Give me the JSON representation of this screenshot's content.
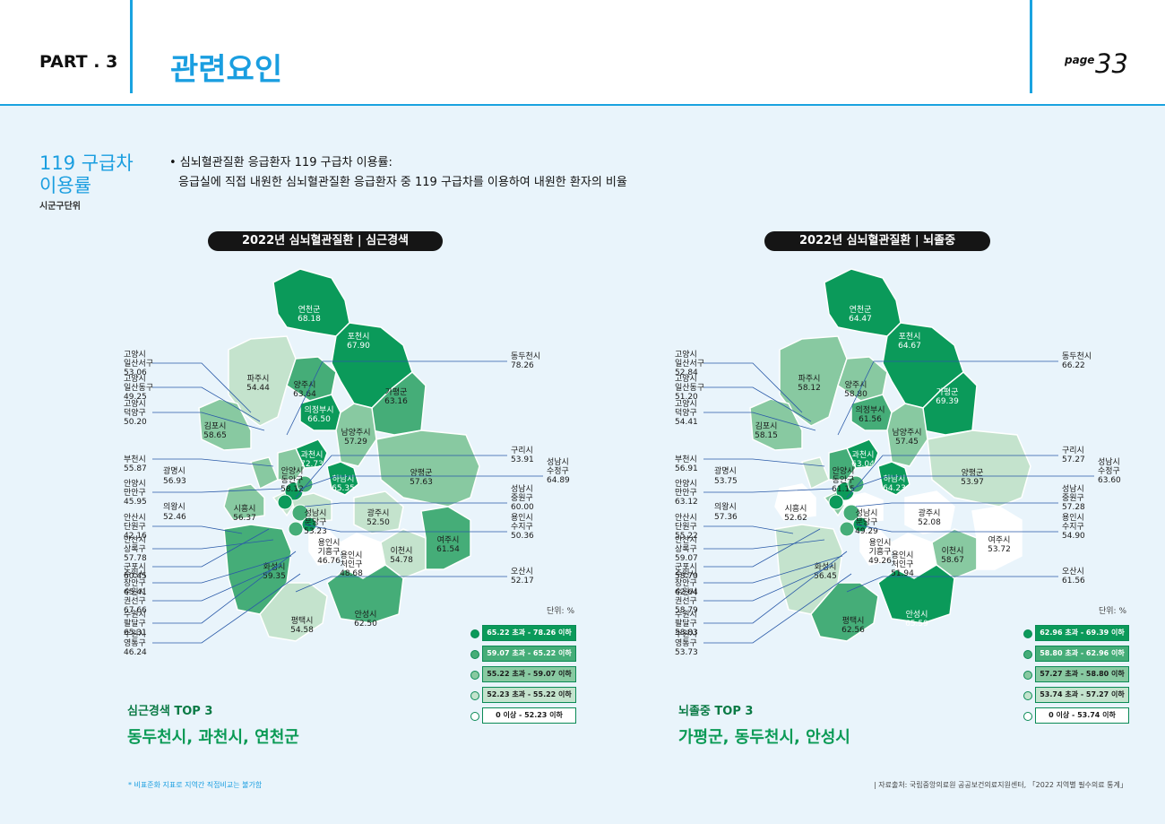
{
  "header": {
    "part": "PART . 3",
    "title": "관련요인",
    "page_label": "page",
    "page_number": "33",
    "accent": "#1aa3e0"
  },
  "section": {
    "title": "119 구급차 이용률",
    "subtitle": "시군구단위",
    "desc_line1": "• 심뇌혈관질환 응급환자 119 구급차 이용률:",
    "desc_line2": "응급실에 직접 내원한 심뇌혈관질환 응급환자 중 119 구급차를 이용하여 내원한 환자의 비율"
  },
  "maps": [
    {
      "title": "2022년 심뇌혈관질환 | 심근경색",
      "unit": "단위: %",
      "legend": [
        "65.22 초과 - 78.26 이하",
        "59.07 초과 - 65.22 이하",
        "55.22 초과 - 59.07 이하",
        "52.23 초과 - 55.22 이하",
        "0 이상 - 52.23 이하"
      ],
      "top3_label": "심근경색 TOP 3",
      "top3_value": "동두천시, 과천시, 연천군",
      "regions": [
        {
          "name": "연천군",
          "value": "68.18",
          "level": 0
        },
        {
          "name": "포천시",
          "value": "67.90",
          "level": 0
        },
        {
          "name": "파주시",
          "value": "54.44",
          "level": 3
        },
        {
          "name": "양주시",
          "value": "63.64",
          "level": 1
        },
        {
          "name": "의정부시",
          "value": "66.50",
          "level": 0
        },
        {
          "name": "가평군",
          "value": "63.16",
          "level": 1
        },
        {
          "name": "김포시",
          "value": "58.65",
          "level": 2
        },
        {
          "name": "남양주시",
          "value": "57.29",
          "level": 2
        },
        {
          "name": "과천시",
          "value": "72.73",
          "level": 0
        },
        {
          "name": "안양시 동안구",
          "value": "58.12",
          "level": 2
        },
        {
          "name": "하남시",
          "value": "65.35",
          "level": 0
        },
        {
          "name": "양평군",
          "value": "57.63",
          "level": 2
        },
        {
          "name": "광명시",
          "value": "56.93",
          "level": 2
        },
        {
          "name": "시흥시",
          "value": "56.37",
          "level": 2
        },
        {
          "name": "의왕시",
          "value": "52.46",
          "level": 3
        },
        {
          "name": "성남시 분당구",
          "value": "53.23",
          "level": 3
        },
        {
          "name": "광주시",
          "value": "52.50",
          "level": 3
        },
        {
          "name": "용인시 기흥구",
          "value": "46.76",
          "level": 4
        },
        {
          "name": "용인시 처인구",
          "value": "48.68",
          "level": 4
        },
        {
          "name": "이천시",
          "value": "54.78",
          "level": 3
        },
        {
          "name": "여주시",
          "value": "61.54",
          "level": 1
        },
        {
          "name": "화성시",
          "value": "59.35",
          "level": 1
        },
        {
          "name": "안성시",
          "value": "62.50",
          "level": 1
        },
        {
          "name": "평택시",
          "value": "54.58",
          "level": 3
        }
      ],
      "side_left": [
        {
          "name": "고양시 일산서구",
          "value": "53.06"
        },
        {
          "name": "고양시 일산동구",
          "value": "49.25"
        },
        {
          "name": "고양시 덕양구",
          "value": "50.20"
        },
        {
          "name": "부천시",
          "value": "55.87"
        },
        {
          "name": "안양시 만안구",
          "value": "45.95"
        },
        {
          "name": "안산시 단원구",
          "value": "42.16"
        },
        {
          "name": "안산시 상록구",
          "value": "57.78"
        },
        {
          "name": "군포시",
          "value": "60.45"
        },
        {
          "name": "수원시 장안구",
          "value": "65.41"
        },
        {
          "name": "수원시 권선구",
          "value": "67.66"
        },
        {
          "name": "수원시 팔달구",
          "value": "65.31"
        },
        {
          "name": "수원시 영통구",
          "value": "46.24"
        }
      ],
      "side_right": [
        {
          "name": "동두천시",
          "value": "78.26"
        },
        {
          "name": "구리시",
          "value": "53.91"
        },
        {
          "name": "성남시 수정구",
          "value": "64.89"
        },
        {
          "name": "성남시 중원구",
          "value": "60.00"
        },
        {
          "name": "용인시 수지구",
          "value": "50.36"
        },
        {
          "name": "오산시",
          "value": "52.17"
        }
      ]
    },
    {
      "title": "2022년 심뇌혈관질환 | 뇌졸중",
      "unit": "단위: %",
      "legend": [
        "62.96 초과 - 69.39 이하",
        "58.80 초과 - 62.96 이하",
        "57.27 초과 - 58.80 이하",
        "53.74 초과 - 57.27 이하",
        "0 이상 - 53.74 이하"
      ],
      "top3_label": "뇌졸중 TOP 3",
      "top3_value": "가평군, 동두천시, 안성시",
      "regions": [
        {
          "name": "연천군",
          "value": "64.47",
          "level": 0
        },
        {
          "name": "포천시",
          "value": "64.67",
          "level": 0
        },
        {
          "name": "파주시",
          "value": "58.12",
          "level": 2
        },
        {
          "name": "양주시",
          "value": "58.80",
          "level": 2
        },
        {
          "name": "의정부시",
          "value": "61.56",
          "level": 1
        },
        {
          "name": "가평군",
          "value": "69.39",
          "level": 0
        },
        {
          "name": "김포시",
          "value": "58.15",
          "level": 2
        },
        {
          "name": "남양주시",
          "value": "57.45",
          "level": 2
        },
        {
          "name": "과천시",
          "value": "63.04",
          "level": 0
        },
        {
          "name": "안양시 동안구",
          "value": "61.15",
          "level": 1
        },
        {
          "name": "하남시",
          "value": "64.23",
          "level": 0
        },
        {
          "name": "양평군",
          "value": "53.97",
          "level": 3
        },
        {
          "name": "광명시",
          "value": "53.75",
          "level": 3
        },
        {
          "name": "시흥시",
          "value": "52.62",
          "level": 4
        },
        {
          "name": "의왕시",
          "value": "57.36",
          "level": 2
        },
        {
          "name": "성남시 분당구",
          "value": "49.29",
          "level": 4
        },
        {
          "name": "광주시",
          "value": "52.08",
          "level": 4
        },
        {
          "name": "용인시 기흥구",
          "value": "49.26",
          "level": 4
        },
        {
          "name": "용인시 처인구",
          "value": "51.94",
          "level": 4
        },
        {
          "name": "이천시",
          "value": "58.67",
          "level": 2
        },
        {
          "name": "여주시",
          "value": "53.72",
          "level": 4
        },
        {
          "name": "화성시",
          "value": "56.45",
          "level": 3
        },
        {
          "name": "안성시",
          "value": "65.59",
          "level": 0
        },
        {
          "name": "평택시",
          "value": "62.56",
          "level": 1
        }
      ],
      "side_left": [
        {
          "name": "고양시 일산서구",
          "value": "52.84"
        },
        {
          "name": "고양시 일산동구",
          "value": "51.20"
        },
        {
          "name": "고양시 덕양구",
          "value": "54.41"
        },
        {
          "name": "부천시",
          "value": "56.91"
        },
        {
          "name": "안양시 만안구",
          "value": "63.12"
        },
        {
          "name": "안산시 단원구",
          "value": "55.22"
        },
        {
          "name": "안산시 상록구",
          "value": "59.07"
        },
        {
          "name": "군포시",
          "value": "58.70"
        },
        {
          "name": "수원시 장안구",
          "value": "62.64"
        },
        {
          "name": "수원시 권선구",
          "value": "58.79"
        },
        {
          "name": "수원시 팔달구",
          "value": "58.83"
        },
        {
          "name": "수원시 영통구",
          "value": "53.73"
        }
      ],
      "side_right": [
        {
          "name": "동두천시",
          "value": "66.22"
        },
        {
          "name": "구리시",
          "value": "57.27"
        },
        {
          "name": "성남시 수정구",
          "value": "63.60"
        },
        {
          "name": "성남시 중원구",
          "value": "57.28"
        },
        {
          "name": "용인시 수지구",
          "value": "54.90"
        },
        {
          "name": "오산시",
          "value": "61.56"
        }
      ]
    }
  ],
  "colors": [
    "#0b9a5a",
    "#45ad78",
    "#88c9a1",
    "#c4e3cd",
    "#ffffff"
  ],
  "footnote_left": "* 비표준화 지표로 지역간 직접비교는 불가함",
  "footnote_right": "| 자료출처: 국립중앙의료원 공공보건의료지원센터, 「2022 지역별 필수의료 통계」"
}
